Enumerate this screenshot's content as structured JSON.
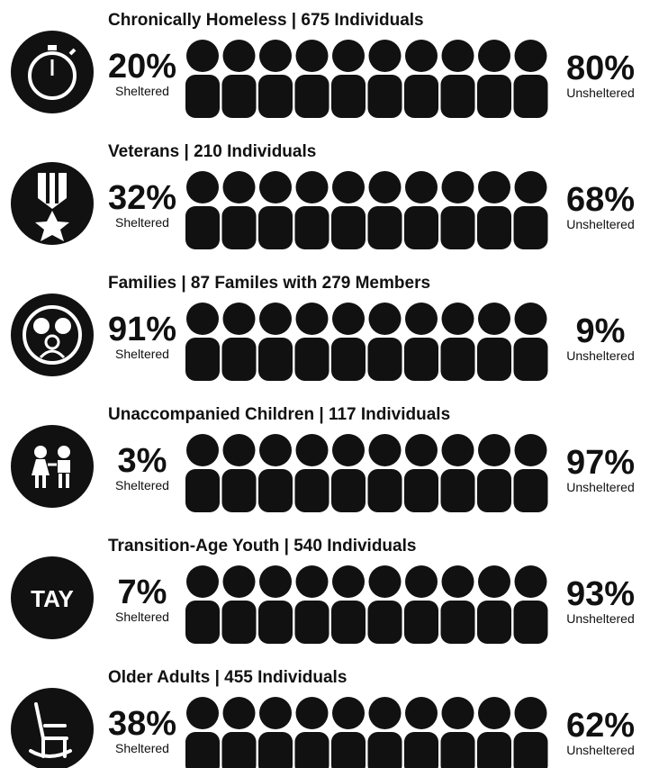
{
  "rows": [
    {
      "title": "Chronically Homeless | 675 Individuals",
      "sheltered_percent": "20%",
      "sheltered_label": "Sheltered",
      "unsheltered_percent": "80%",
      "unsheltered_label": "Unsheltered"
    },
    {
      "title": "Veterans |  210 Individuals",
      "sheltered_percent": "32%",
      "sheltered_label": "Sheltered",
      "unsheltered_percent": "68%",
      "unsheltered_label": "Unsheltered"
    },
    {
      "title": "Families | 87 Familes with 279 Members",
      "sheltered_percent": "91%",
      "sheltered_label": "Sheltered",
      "unsheltered_percent": "9%",
      "unsheltered_label": "Unsheltered"
    },
    {
      "title": "Unaccompanied Children | 117 Individuals",
      "sheltered_percent": "3%",
      "sheltered_label": "Sheltered",
      "unsheltered_percent": "97%",
      "unsheltered_label": "Unsheltered"
    },
    {
      "title": "Transition-Age Youth | 540 Individuals",
      "icon_text": "TAY",
      "sheltered_percent": "7%",
      "sheltered_label": "Sheltered",
      "unsheltered_percent": "93%",
      "unsheltered_label": "Unsheltered"
    },
    {
      "title": "Older Adults | 455 Individuals",
      "sheltered_percent": "38%",
      "sheltered_label": "Sheltered",
      "unsheltered_percent": "62%",
      "unsheltered_label": "Unsheltered"
    }
  ]
}
